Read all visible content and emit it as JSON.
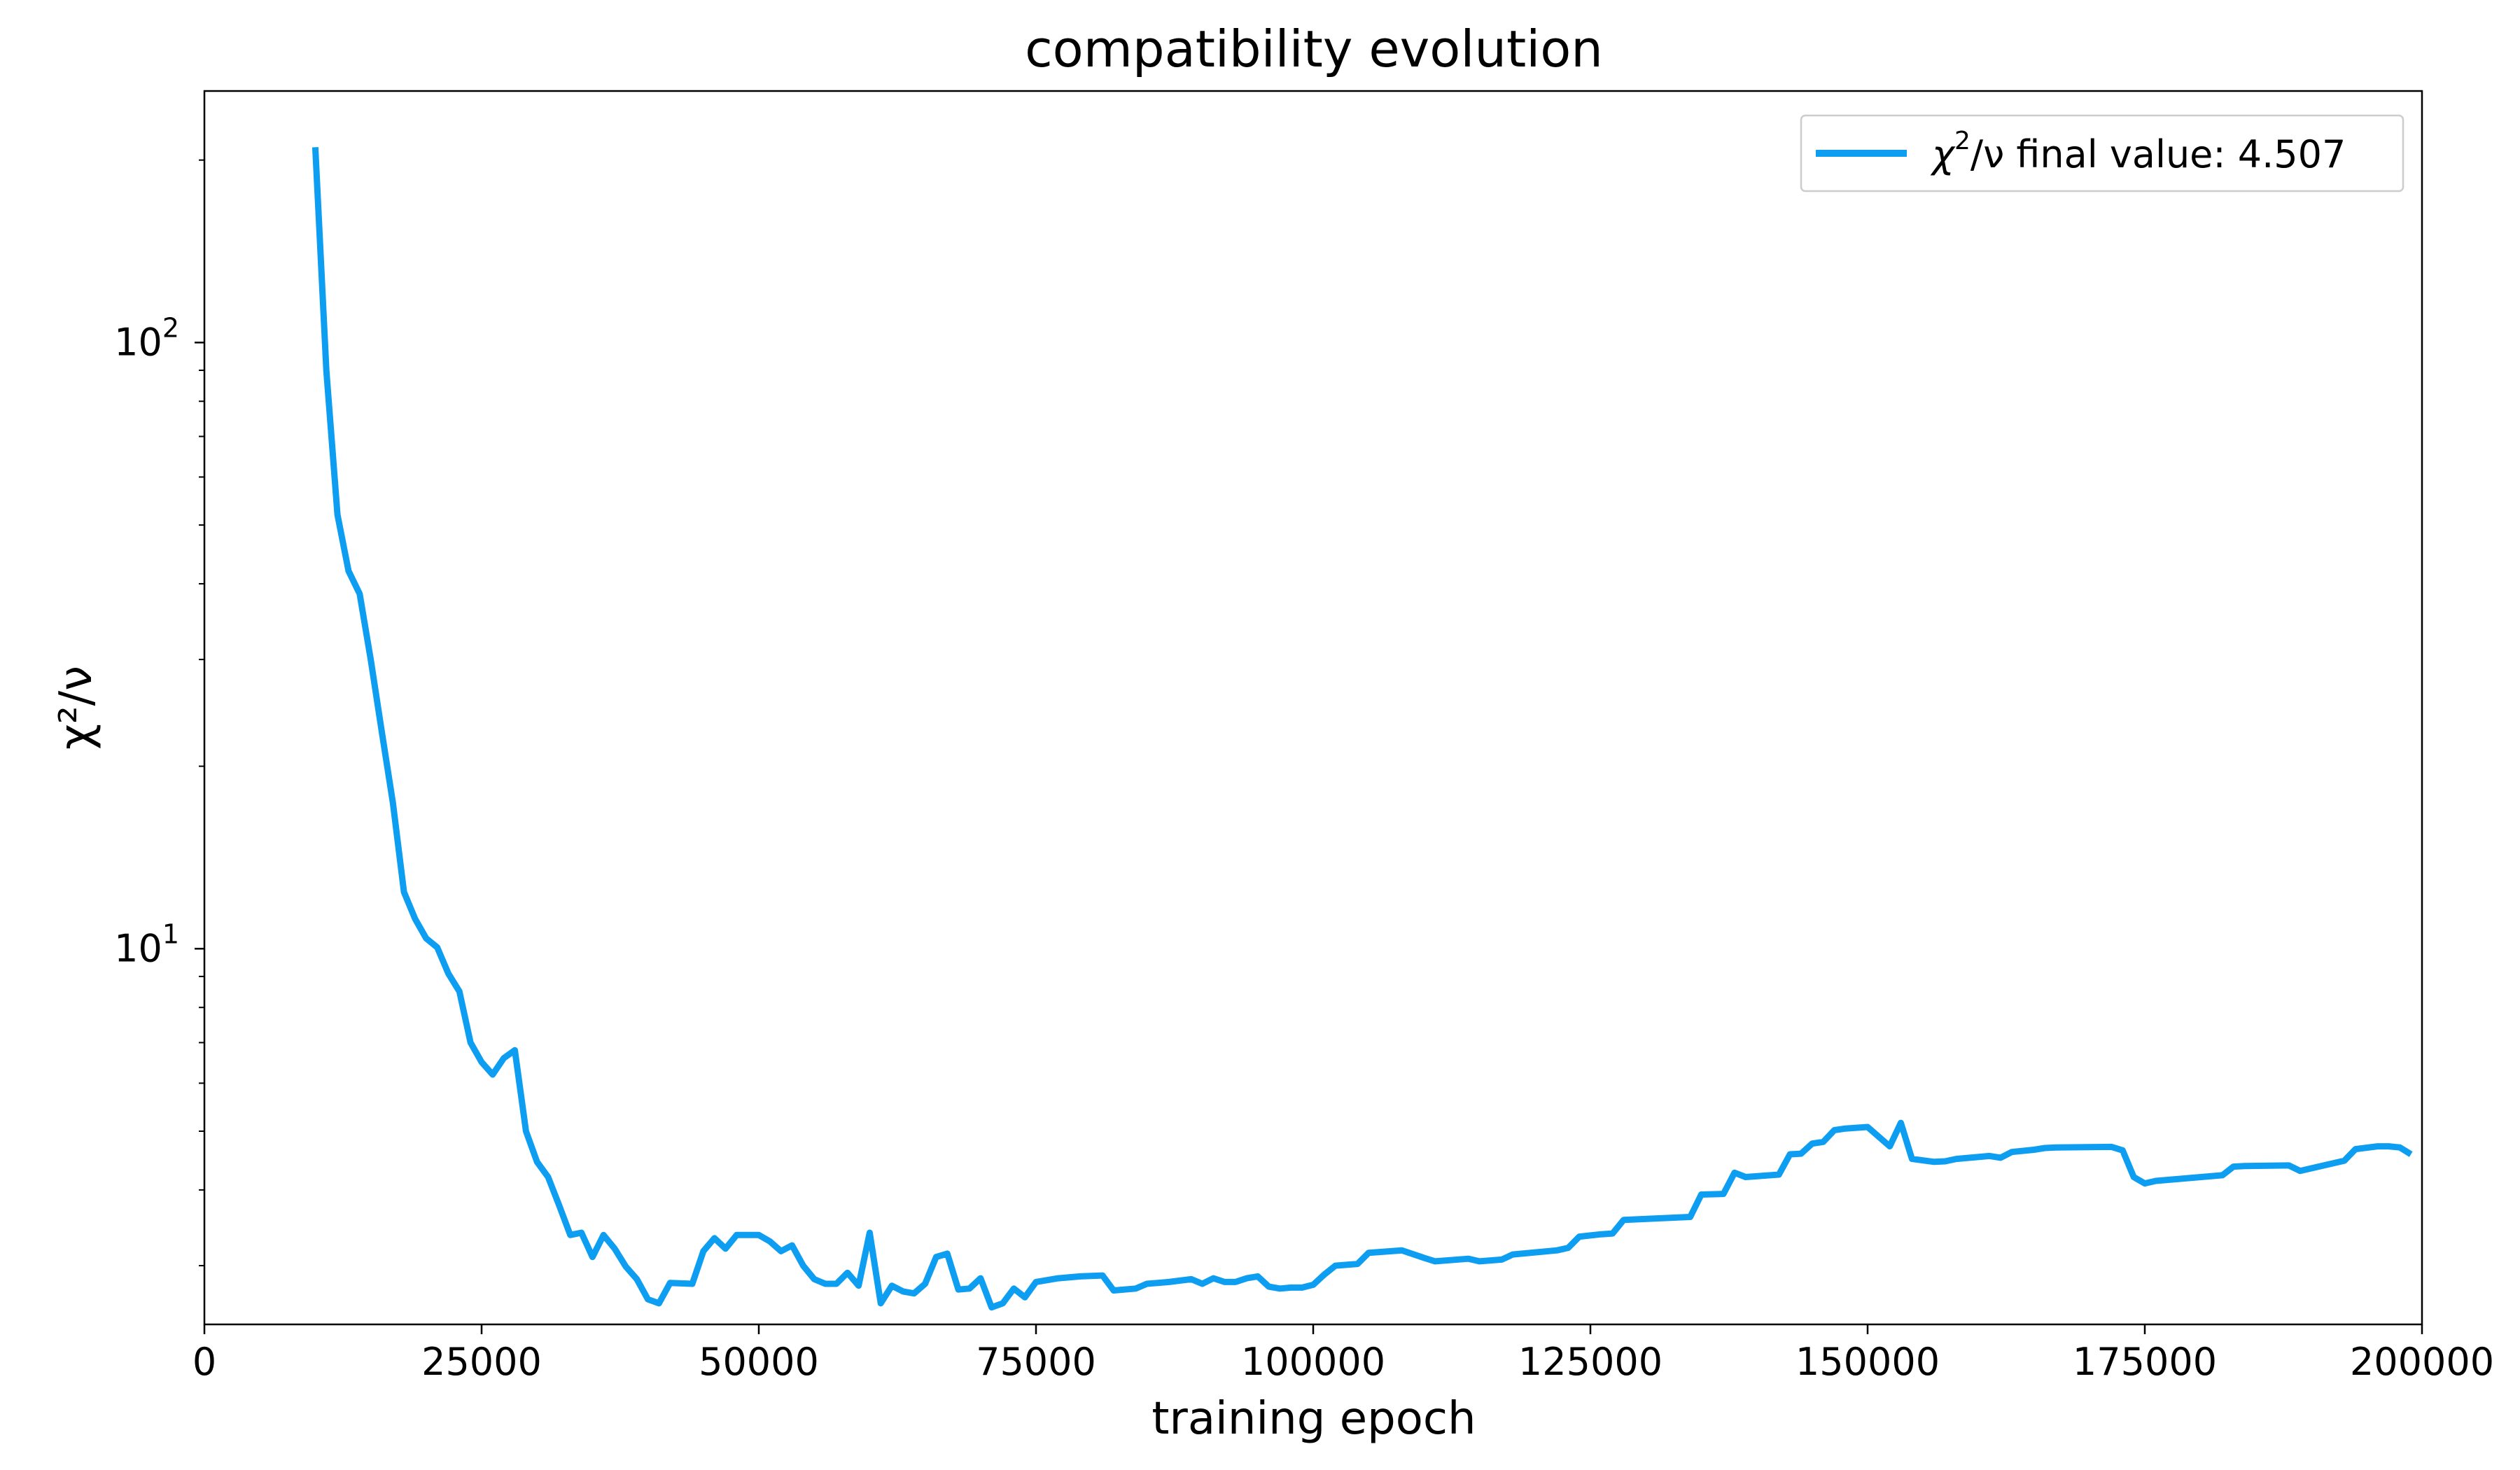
{
  "chart_data": {
    "type": "line",
    "title": "compatibility evolution",
    "xlabel": "training epoch",
    "ylabel": "χ²/ν",
    "xlim": [
      0,
      200000
    ],
    "ylim": [
      2.4,
      260
    ],
    "yscale": "log",
    "grid": false,
    "legend_position": "top-right",
    "xticks": [
      0,
      25000,
      50000,
      75000,
      100000,
      125000,
      150000,
      175000,
      200000
    ],
    "yticks": [
      {
        "value": 10,
        "base": "10",
        "exp": "1"
      },
      {
        "value": 100,
        "base": "10",
        "exp": "2"
      }
    ],
    "series": [
      {
        "name": "χ²/ν final value: 4.507",
        "legend_prefix": "χ",
        "legend_sup": "2",
        "legend_suffix": "/ν final value: 4.507",
        "color": "#0d9ef2",
        "x": [
          10000,
          11000,
          12000,
          13000,
          14000,
          15000,
          16000,
          17000,
          18000,
          19000,
          20000,
          21000,
          22000,
          23000,
          24000,
          25000,
          26000,
          27000,
          28000,
          29000,
          30000,
          31000,
          32000,
          33000,
          34000,
          35000,
          36000,
          37000,
          38000,
          39000,
          40000,
          41000,
          42000,
          44000,
          45000,
          46000,
          47000,
          48000,
          50000,
          51000,
          52000,
          53000,
          54000,
          55000,
          56000,
          57000,
          58000,
          59000,
          60000,
          61000,
          62000,
          63000,
          64000,
          65000,
          66000,
          67000,
          68000,
          69000,
          70000,
          71000,
          72000,
          73000,
          74000,
          75000,
          77000,
          79000,
          81000,
          82000,
          84000,
          85000,
          87000,
          89000,
          90000,
          91000,
          92000,
          93000,
          94000,
          95000,
          96000,
          97000,
          98000,
          99000,
          100000,
          101000,
          102000,
          104000,
          105000,
          108000,
          110000,
          111000,
          114000,
          115000,
          117000,
          118000,
          122000,
          123000,
          124000,
          126000,
          127000,
          128000,
          134000,
          135000,
          137000,
          138000,
          139000,
          142000,
          143000,
          144000,
          145000,
          146000,
          147000,
          148000,
          150000,
          152000,
          153000,
          154000,
          156000,
          157000,
          158000,
          161000,
          162000,
          163000,
          165000,
          166000,
          167000,
          172000,
          173000,
          174000,
          175000,
          176000,
          182000,
          183000,
          184000,
          188000,
          189000,
          193000,
          194000,
          196000,
          197000,
          198000,
          199000
        ],
        "y": [
          210,
          90,
          52,
          42,
          38.5,
          30,
          22.8,
          17.4,
          12.4,
          11.2,
          10.4,
          10.05,
          9.1,
          8.5,
          7.0,
          6.5,
          6.2,
          6.6,
          6.8,
          5.0,
          4.45,
          4.2,
          3.77,
          3.37,
          3.4,
          3.1,
          3.37,
          3.2,
          2.99,
          2.85,
          2.64,
          2.6,
          2.81,
          2.8,
          3.17,
          3.33,
          3.2,
          3.37,
          3.37,
          3.29,
          3.17,
          3.24,
          3.0,
          2.85,
          2.8,
          2.8,
          2.92,
          2.78,
          3.4,
          2.6,
          2.78,
          2.72,
          2.7,
          2.8,
          3.1,
          3.14,
          2.74,
          2.75,
          2.86,
          2.56,
          2.6,
          2.75,
          2.66,
          2.82,
          2.86,
          2.88,
          2.89,
          2.73,
          2.75,
          2.8,
          2.82,
          2.85,
          2.8,
          2.86,
          2.82,
          2.82,
          2.86,
          2.88,
          2.77,
          2.75,
          2.76,
          2.76,
          2.79,
          2.9,
          3.0,
          3.02,
          3.15,
          3.18,
          3.09,
          3.05,
          3.08,
          3.05,
          3.07,
          3.13,
          3.18,
          3.21,
          3.35,
          3.38,
          3.39,
          3.57,
          3.61,
          3.93,
          3.94,
          4.27,
          4.2,
          4.24,
          4.58,
          4.59,
          4.77,
          4.8,
          5.02,
          5.05,
          5.08,
          4.72,
          5.16,
          4.5,
          4.45,
          4.46,
          4.5,
          4.55,
          4.52,
          4.62,
          4.66,
          4.69,
          4.7,
          4.71,
          4.65,
          4.2,
          4.1,
          4.14,
          4.23,
          4.37,
          4.38,
          4.39,
          4.3,
          4.47,
          4.67,
          4.72,
          4.72,
          4.7,
          4.58
        ]
      }
    ]
  }
}
